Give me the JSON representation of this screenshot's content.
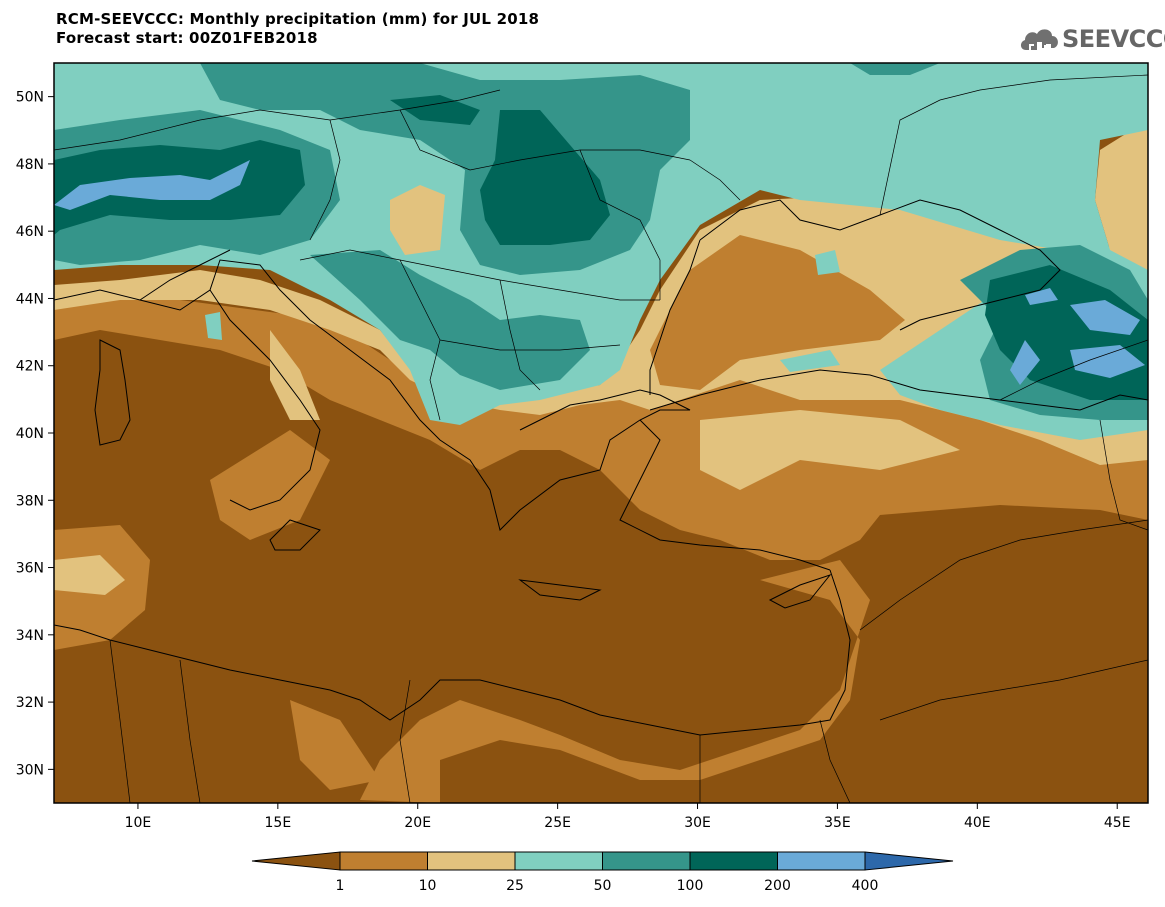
{
  "header": {
    "title": "RCM-SEEVCCC: Monthly precipitation (mm) for JUL 2018",
    "subtitle": "Forecast start: 00Z01FEB2018"
  },
  "logo": {
    "text": "SEEVCCC",
    "icon": "cloud-icon",
    "color": "#707070"
  },
  "map": {
    "lat_labels": [
      "50N",
      "48N",
      "46N",
      "44N",
      "42N",
      "40N",
      "38N",
      "36N",
      "34N",
      "32N",
      "30N"
    ],
    "lat_values": [
      50,
      48,
      46,
      44,
      42,
      40,
      38,
      36,
      34,
      32,
      30
    ],
    "lon_labels": [
      "10E",
      "15E",
      "20E",
      "25E",
      "30E",
      "35E",
      "40E",
      "45E"
    ],
    "lon_values": [
      10,
      15,
      20,
      25,
      30,
      35,
      40,
      45
    ],
    "lon_range": [
      7,
      46.1
    ],
    "lat_range": [
      29.0,
      51.0
    ]
  },
  "legend": {
    "labels": [
      "1",
      "10",
      "25",
      "50",
      "100",
      "200",
      "400"
    ],
    "colors": [
      "#8b5210",
      "#bf7f30",
      "#e2c27e",
      "#80cfc0",
      "#35958a",
      "#006558",
      "#6aaad8",
      "#2d68aa"
    ]
  }
}
